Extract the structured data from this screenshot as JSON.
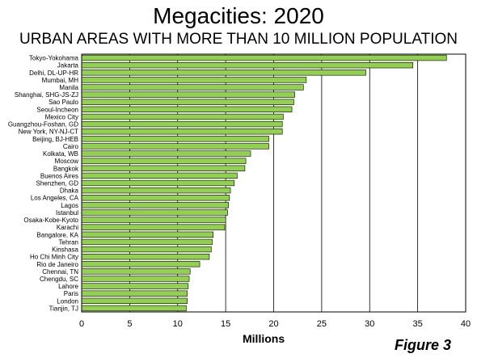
{
  "header": {
    "title": "Megacities: 2020",
    "subtitle": "URBAN AREAS WITH MORE THAN 10 MILLION POPULATION",
    "figure_label": "Figure 3"
  },
  "chart_data": {
    "type": "bar",
    "orientation": "horizontal",
    "title": "Megacities: 2020",
    "subtitle": "URBAN AREAS WITH MORE THAN 10 MILLION POPULATION",
    "xlabel": "Millions",
    "ylabel": "",
    "xlim": [
      0,
      40
    ],
    "xticks": [
      0,
      5,
      10,
      15,
      20,
      25,
      30,
      35,
      40
    ],
    "grid": "vertical",
    "legend": "none",
    "bar_color": "#92d050",
    "categories": [
      "Tokyo-Yokohama",
      "Jakarta",
      "Delhi, DL-UP-HR",
      "Mumbai, MH",
      "Manila",
      "Shanghai, SHG-JS-ZJ",
      "Sao Paulo",
      "Seoul-Incheon",
      "Mexico City",
      "Guangzhou-Foshan, GD",
      "New York, NY-NJ-CT",
      "Beijing, BJ-HEB",
      "Cairo",
      "Kolkata, WB",
      "Moscow",
      "Bangkok",
      "Buenos Aires",
      "Shenzhen, GD",
      "Dhaka",
      "Los Angeles, CA",
      "Lagos",
      "Istanbul",
      "Osaka-Kobe-Kyoto",
      "Karachi",
      "Bangalore, KA",
      "Tehran",
      "Kinshasa",
      "Ho Chi Minh City",
      "Rio de Janeiro",
      "Chennai, TN",
      "Chengdu, SC",
      "Lahore",
      "Paris",
      "London",
      "Tianjin, TJ"
    ],
    "values": [
      38.0,
      34.5,
      29.6,
      23.4,
      23.1,
      22.2,
      22.1,
      21.9,
      21.0,
      20.9,
      20.9,
      19.5,
      19.5,
      17.6,
      17.1,
      17.0,
      16.2,
      15.9,
      15.5,
      15.4,
      15.3,
      15.2,
      15.0,
      14.9,
      13.7,
      13.6,
      13.5,
      13.3,
      12.3,
      11.3,
      11.2,
      11.1,
      11.0,
      11.0,
      10.9
    ]
  }
}
